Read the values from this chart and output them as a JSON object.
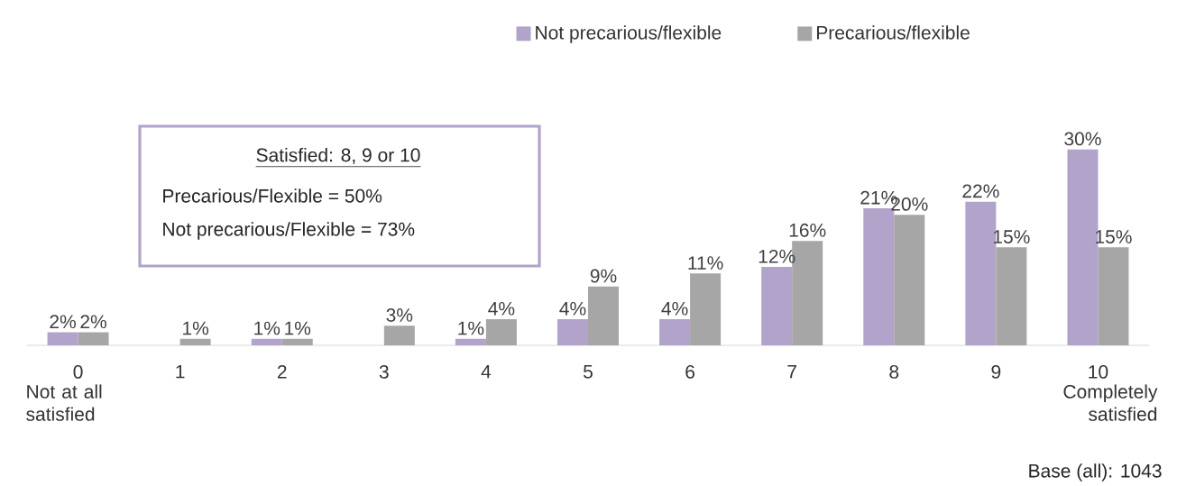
{
  "chart_data": {
    "type": "bar",
    "categories": [
      "0",
      "1",
      "2",
      "3",
      "4",
      "5",
      "6",
      "7",
      "8",
      "9",
      "10"
    ],
    "series": [
      {
        "name": "Not precarious/flexible",
        "color": "#b1a3c9",
        "values": [
          2,
          null,
          1,
          null,
          1,
          4,
          4,
          12,
          21,
          22,
          30
        ],
        "value_labels": [
          "2%",
          null,
          "1%",
          null,
          "1%",
          "4%",
          "4%",
          "12%",
          "21%",
          "22%",
          "30%"
        ]
      },
      {
        "name": "Precarious/flexible",
        "color": "#a6a6a6",
        "values": [
          2,
          1,
          1,
          3,
          4,
          9,
          11,
          16,
          20,
          15,
          15
        ],
        "value_labels": [
          "2%",
          "1%",
          "1%",
          "3%",
          "4%",
          "9%",
          "11%",
          "16%",
          "20%",
          "15%",
          "15%"
        ]
      }
    ],
    "legend": "top",
    "annotations": [
      "Not at all satisfied",
      "Completely satisfied",
      "Satisfied: 8, 9 or 10",
      "Precarious/Flexible = 50%",
      "Not precarious/Flexible = 73%",
      "Base (all): 1043"
    ]
  }
}
